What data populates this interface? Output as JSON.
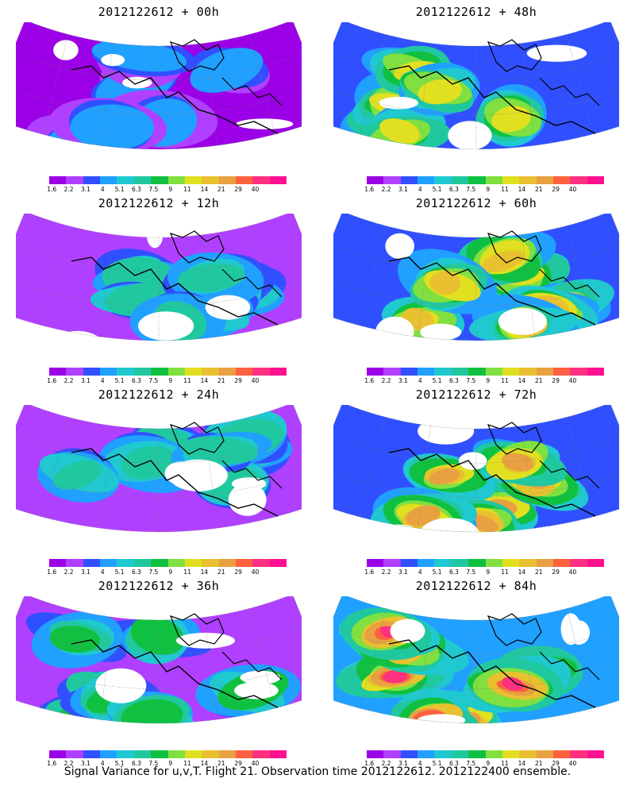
{
  "panels": [
    {
      "title": "2012122612 + 00h",
      "level": 0.15
    },
    {
      "title": "2012122612 + 48h",
      "level": 0.5
    },
    {
      "title": "2012122612 + 12h",
      "level": 0.25
    },
    {
      "title": "2012122612 + 60h",
      "level": 0.6
    },
    {
      "title": "2012122612 + 24h",
      "level": 0.32
    },
    {
      "title": "2012122612 + 72h",
      "level": 0.72
    },
    {
      "title": "2012122612 + 36h",
      "level": 0.42
    },
    {
      "title": "2012122612 + 84h",
      "level": 0.8
    }
  ],
  "colorbar": {
    "labels": [
      "1.6",
      "2.2",
      "3.1",
      "4",
      "5.1",
      "6.3",
      "7.5",
      "9",
      "11",
      "14",
      "21",
      "29",
      "40"
    ],
    "colors": [
      "#9b00e6",
      "#b040ff",
      "#3050ff",
      "#20a0ff",
      "#20c8d0",
      "#20c8a0",
      "#10c040",
      "#80e040",
      "#e0e020",
      "#e8c030",
      "#e8a040",
      "#ff6040",
      "#ff3080",
      "#ff1090"
    ]
  },
  "footer": "Signal Variance for u,v,T. Flight 21. Observation time 2012122612. 2012122400 ensemble."
}
